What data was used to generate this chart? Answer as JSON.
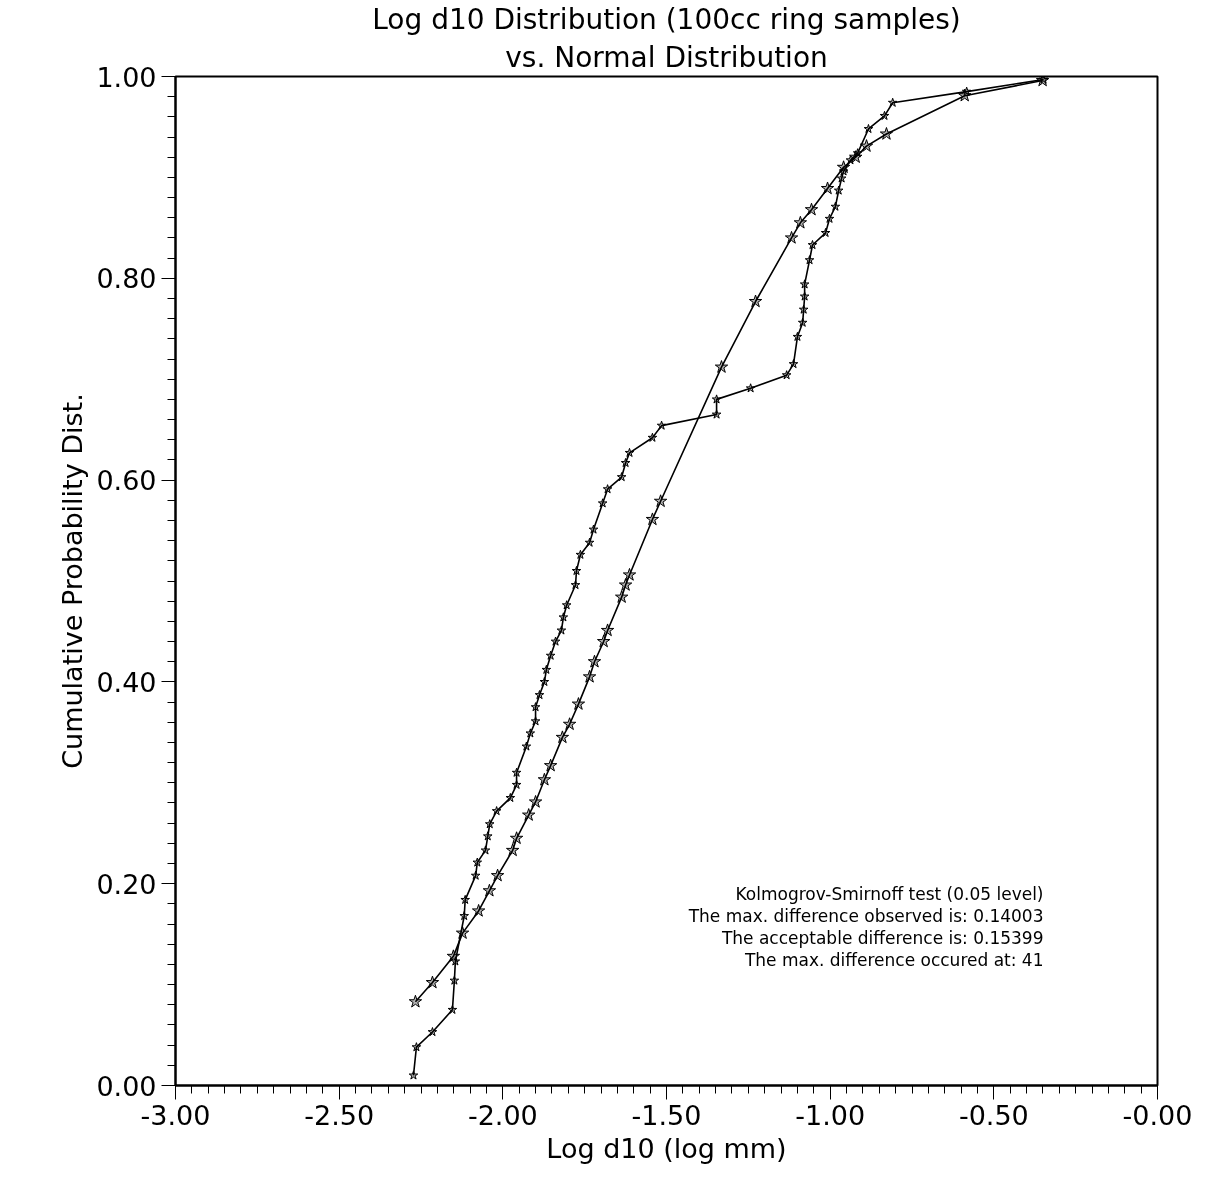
{
  "chart_data": {
    "type": "line",
    "title": "Log d10 Distribution (100cc ring samples)",
    "subtitle": "vs. Normal Distribution",
    "xlabel": "Log d10 (log mm)",
    "ylabel": "Cumulative Probability Dist.",
    "xlim": [
      -3.0,
      0.0
    ],
    "ylim": [
      0.0,
      1.0
    ],
    "xticks": [
      {
        "value": -3.0,
        "label": "-3.00"
      },
      {
        "value": -2.5,
        "label": "-2.50"
      },
      {
        "value": -2.0,
        "label": "-2.00"
      },
      {
        "value": -1.5,
        "label": "-1.50"
      },
      {
        "value": -1.0,
        "label": "-1.00"
      },
      {
        "value": -0.5,
        "label": "-0.50"
      },
      {
        "value": 0.0,
        "label": "-0.00"
      }
    ],
    "yticks": [
      {
        "value": 0.0,
        "label": "0.00"
      },
      {
        "value": 0.2,
        "label": "0.20"
      },
      {
        "value": 0.4,
        "label": "0.40"
      },
      {
        "value": 0.6,
        "label": "0.60"
      },
      {
        "value": 0.8,
        "label": "0.80"
      },
      {
        "value": 1.0,
        "label": "1.00"
      }
    ],
    "grid": false,
    "marker": "star",
    "line_style": "solid",
    "annotations": [
      "Kolmogrov-Smirnoff test (0.05 level)",
      "The max. difference observed is: 0.14003",
      "The acceptable difference is: 0.15399",
      "The max. difference occured at: 41"
    ],
    "series": [
      {
        "color": "#000000",
        "x": [
          -2.273,
          -2.264,
          -2.215,
          -2.154,
          -2.148,
          -2.145,
          -2.118,
          -2.115,
          -2.083,
          -2.078,
          -2.053,
          -2.046,
          -2.04,
          -2.019,
          -1.977,
          -1.958,
          -1.958,
          -1.928,
          -1.916,
          -1.9,
          -1.9,
          -1.888,
          -1.873,
          -1.867,
          -1.854,
          -1.839,
          -1.821,
          -1.815,
          -1.805,
          -1.778,
          -1.775,
          -1.763,
          -1.735,
          -1.723,
          -1.695,
          -1.68,
          -1.637,
          -1.625,
          -1.613,
          -1.543,
          -1.515,
          -1.347,
          -1.347,
          -1.243,
          -1.133,
          -1.112,
          -1.1,
          -1.084,
          -1.081,
          -1.078,
          -1.078,
          -1.063,
          -1.054,
          -1.014,
          -1.002,
          -0.984,
          -0.974,
          -0.965,
          -0.959,
          -0.938,
          -0.916,
          -0.883,
          -0.834,
          -0.809,
          -0.583,
          -0.348
        ],
        "values": [
          0.01,
          0.038,
          0.053,
          0.075,
          0.104,
          0.123,
          0.168,
          0.184,
          0.208,
          0.221,
          0.233,
          0.247,
          0.259,
          0.272,
          0.285,
          0.298,
          0.31,
          0.336,
          0.349,
          0.361,
          0.375,
          0.387,
          0.4,
          0.412,
          0.426,
          0.44,
          0.451,
          0.464,
          0.476,
          0.496,
          0.51,
          0.526,
          0.538,
          0.551,
          0.577,
          0.591,
          0.603,
          0.617,
          0.627,
          0.642,
          0.654,
          0.665,
          0.68,
          0.691,
          0.704,
          0.715,
          0.742,
          0.756,
          0.769,
          0.782,
          0.794,
          0.818,
          0.833,
          0.845,
          0.859,
          0.871,
          0.887,
          0.899,
          0.906,
          0.917,
          0.924,
          0.948,
          0.961,
          0.974,
          0.985,
          0.997
        ]
      },
      {
        "color": "#000000",
        "x": [
          -2.267,
          -2.215,
          -2.151,
          -2.123,
          -2.074,
          -2.041,
          -2.016,
          -1.97,
          -1.958,
          -1.921,
          -1.9,
          -1.873,
          -1.854,
          -1.818,
          -1.796,
          -1.769,
          -1.735,
          -1.72,
          -1.692,
          -1.68,
          -1.637,
          -1.625,
          -1.613,
          -1.543,
          -1.518,
          -1.332,
          -1.228,
          -1.118,
          -1.091,
          -1.057,
          -1.008,
          -0.959,
          -0.922,
          -0.889,
          -0.828,
          -0.589,
          -0.351
        ],
        "values": [
          0.083,
          0.102,
          0.128,
          0.151,
          0.173,
          0.193,
          0.208,
          0.233,
          0.245,
          0.268,
          0.281,
          0.303,
          0.317,
          0.345,
          0.358,
          0.378,
          0.405,
          0.42,
          0.44,
          0.451,
          0.484,
          0.496,
          0.506,
          0.561,
          0.579,
          0.712,
          0.777,
          0.84,
          0.855,
          0.868,
          0.889,
          0.91,
          0.92,
          0.931,
          0.943,
          0.981,
          0.996
        ]
      }
    ]
  }
}
